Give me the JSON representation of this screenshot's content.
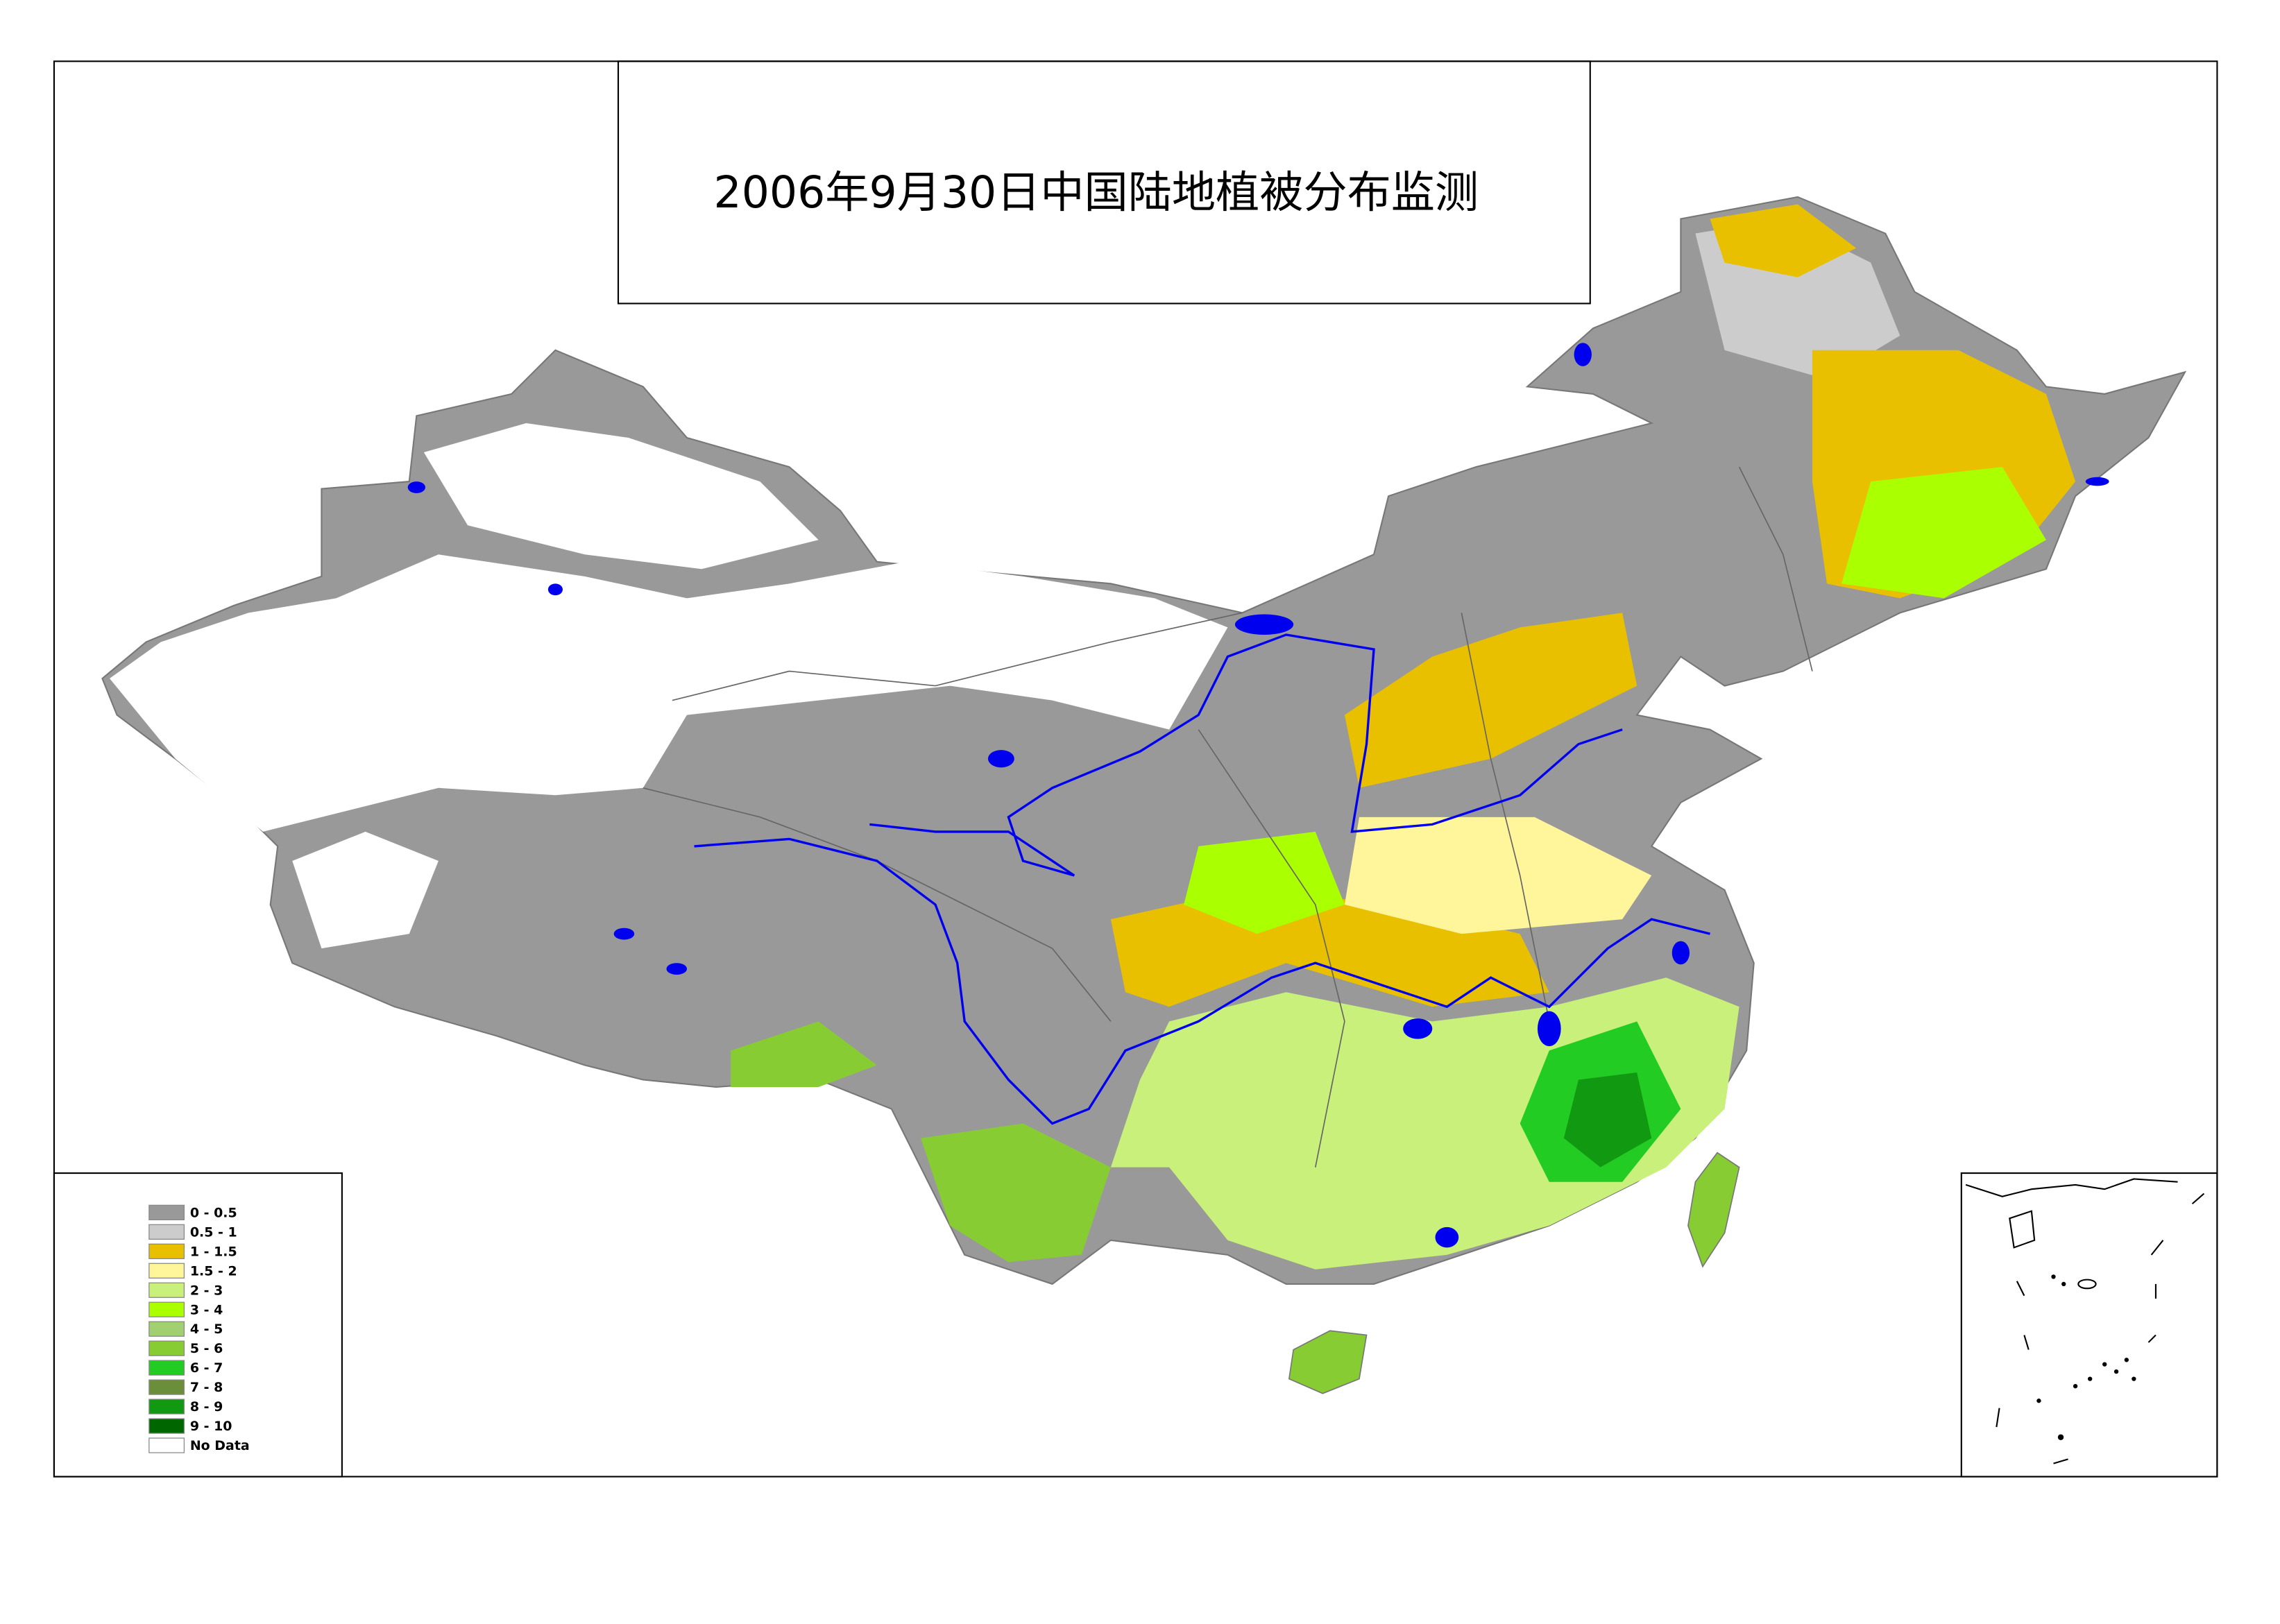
{
  "title": "2006年9月30日中国陆地植被分布监测",
  "legend": {
    "items": [
      {
        "label": "0 - 0.5",
        "color": "#999999"
      },
      {
        "label": "0.5 - 1",
        "color": "#cccccc"
      },
      {
        "label": "1 - 1.5",
        "color": "#e8c000"
      },
      {
        "label": "1.5 - 2",
        "color": "#fff59a"
      },
      {
        "label": "2 - 3",
        "color": "#c8f07a"
      },
      {
        "label": "3 - 4",
        "color": "#aaff00"
      },
      {
        "label": "4 - 5",
        "color": "#a0d070"
      },
      {
        "label": "5 - 6",
        "color": "#88cc33"
      },
      {
        "label": "6 - 7",
        "color": "#22cc22"
      },
      {
        "label": "7 - 8",
        "color": "#6b8e3a"
      },
      {
        "label": "8 - 9",
        "color": "#119911"
      },
      {
        "label": "9 - 10",
        "color": "#006600"
      },
      {
        "label": "No Data",
        "color": "#ffffff"
      }
    ]
  }
}
